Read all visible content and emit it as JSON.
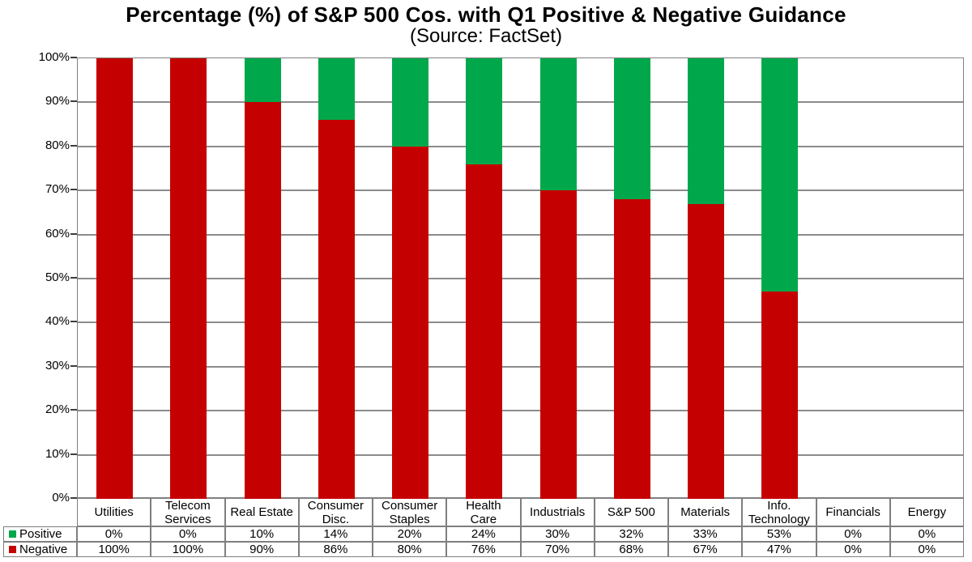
{
  "chart_data": {
    "type": "bar",
    "stacked": true,
    "title": "Percentage (%) of S&P 500 Cos. with Q1 Positive & Negative Guidance",
    "subtitle": "(Source: FactSet)",
    "categories": [
      "Utilities",
      "Telecom Services",
      "Real Estate",
      "Consumer Disc.",
      "Consumer Staples",
      "Health Care",
      "Industrials",
      "S&P 500",
      "Materials",
      "Info. Technology",
      "Financials",
      "Energy"
    ],
    "category_label_lines": [
      [
        "Utilities"
      ],
      [
        "Telecom",
        "Services"
      ],
      [
        "Real Estate"
      ],
      [
        "Consumer",
        "Disc."
      ],
      [
        "Consumer",
        "Staples"
      ],
      [
        "Health",
        "Care"
      ],
      [
        "Industrials"
      ],
      [
        "S&P 500"
      ],
      [
        "Materials"
      ],
      [
        "Info.",
        "Technology"
      ],
      [
        "Financials"
      ],
      [
        "Energy"
      ]
    ],
    "series": [
      {
        "name": "Positive",
        "color": "#00A84B",
        "values": [
          0,
          0,
          10,
          14,
          20,
          24,
          30,
          32,
          33,
          53,
          0,
          0
        ]
      },
      {
        "name": "Negative",
        "color": "#C50000",
        "values": [
          100,
          100,
          90,
          86,
          80,
          76,
          70,
          68,
          67,
          47,
          0,
          0
        ]
      }
    ],
    "value_suffix": "%",
    "ylim": [
      0,
      100
    ],
    "ytick_labels": [
      "0%",
      "10%",
      "20%",
      "30%",
      "40%",
      "50%",
      "60%",
      "70%",
      "80%",
      "90%",
      "100%"
    ],
    "grid": true,
    "legend_position": "table-left"
  },
  "style": {
    "positive_color": "#00A84B",
    "negative_color": "#C50000",
    "gridline_color": "#8c8c8c",
    "border_color": "#7f7f7f",
    "text_color": "#000000"
  }
}
